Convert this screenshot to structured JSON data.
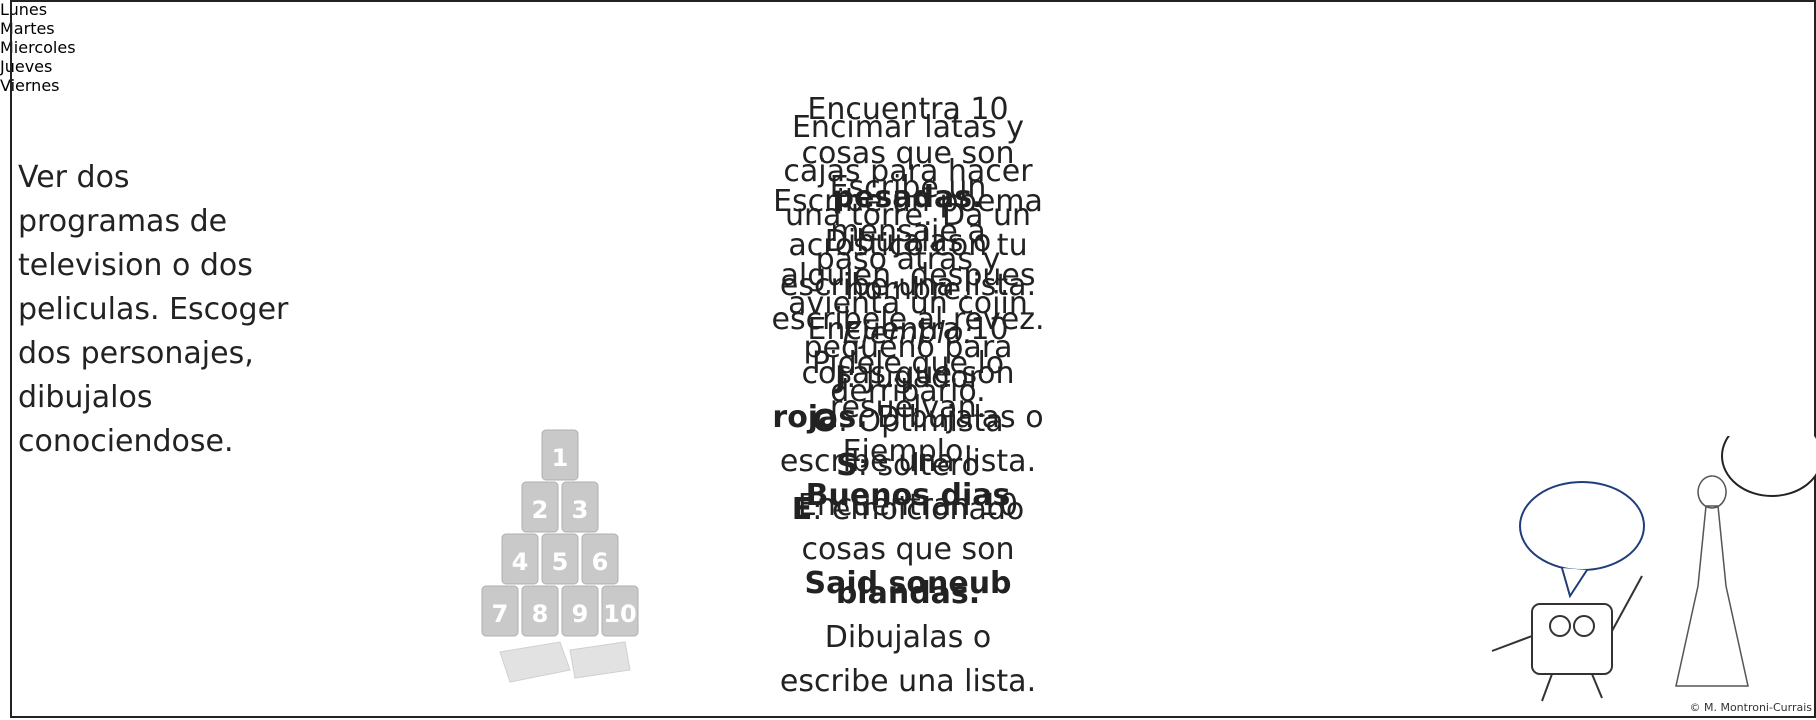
{
  "table": {
    "headers": [
      "Lunes",
      "Martes",
      "Miercoles",
      "Jueves",
      "Viernes"
    ],
    "cells": [
      [
        [
          "Encuentra 10"
        ],
        [
          "cosas que son"
        ],
        [
          {
            "b": "pesadas."
          }
        ],
        [
          "Dibujalas o"
        ],
        [
          "escribe una lista."
        ],
        [
          "Encuentra 10"
        ],
        [
          "cosas que son"
        ],
        [
          {
            "b": "rojas."
          },
          " Dibujalas o"
        ],
        [
          "escribe una lista."
        ],
        [
          "Encuentran 10"
        ],
        [
          "cosas que son"
        ],
        [
          {
            "b": "blandas."
          }
        ],
        [
          "Dibujalas o"
        ],
        [
          "escribe una lista."
        ]
      ],
      [
        [
          "Encimar latas y"
        ],
        [
          "cajas para hacer"
        ],
        [
          "una torre. Da un"
        ],
        [
          "paso atras y"
        ],
        [
          "avienta un cojin"
        ],
        [
          "pequeno para"
        ],
        [
          "derribarlo."
        ]
      ],
      [
        [
          "Escribe un"
        ],
        [
          "mensaje a"
        ],
        [
          "alguien, despues"
        ],
        [
          "escribele al revez."
        ],
        [
          "Pidele que lo"
        ],
        [
          "resuelvan."
        ],
        [
          "Ejemplo:"
        ],
        [
          {
            "b": "Buenos dias"
          }
        ],
        [],
        [
          {
            "b": "Said soneub"
          }
        ]
      ],
      [
        [
          "Escribe un poema"
        ],
        [
          "acrostico con tu"
        ],
        [
          "nombre."
        ],
        [
          {
            "i": "Ejemplo:"
          }
        ],
        [
          {
            "b": "J"
          },
          ": Jugador"
        ],
        [
          {
            "b": "O"
          },
          ": Optimista"
        ],
        [
          {
            "b": "S"
          },
          ": soltero"
        ],
        [
          {
            "b": "E"
          },
          ": emoicionado"
        ]
      ],
      [
        [
          "Ver dos"
        ],
        [
          "programas de"
        ],
        [
          "television o dos"
        ],
        [
          "peliculas. Escoger"
        ],
        [
          "dos personajes,"
        ],
        [
          "dibujalos"
        ],
        [
          "conociendose."
        ]
      ]
    ],
    "can_labels": [
      "1",
      "2",
      "3",
      "4",
      "5",
      "6",
      "7",
      "8",
      "9",
      "10"
    ],
    "copyright": "© M. Montroni-Currais"
  }
}
